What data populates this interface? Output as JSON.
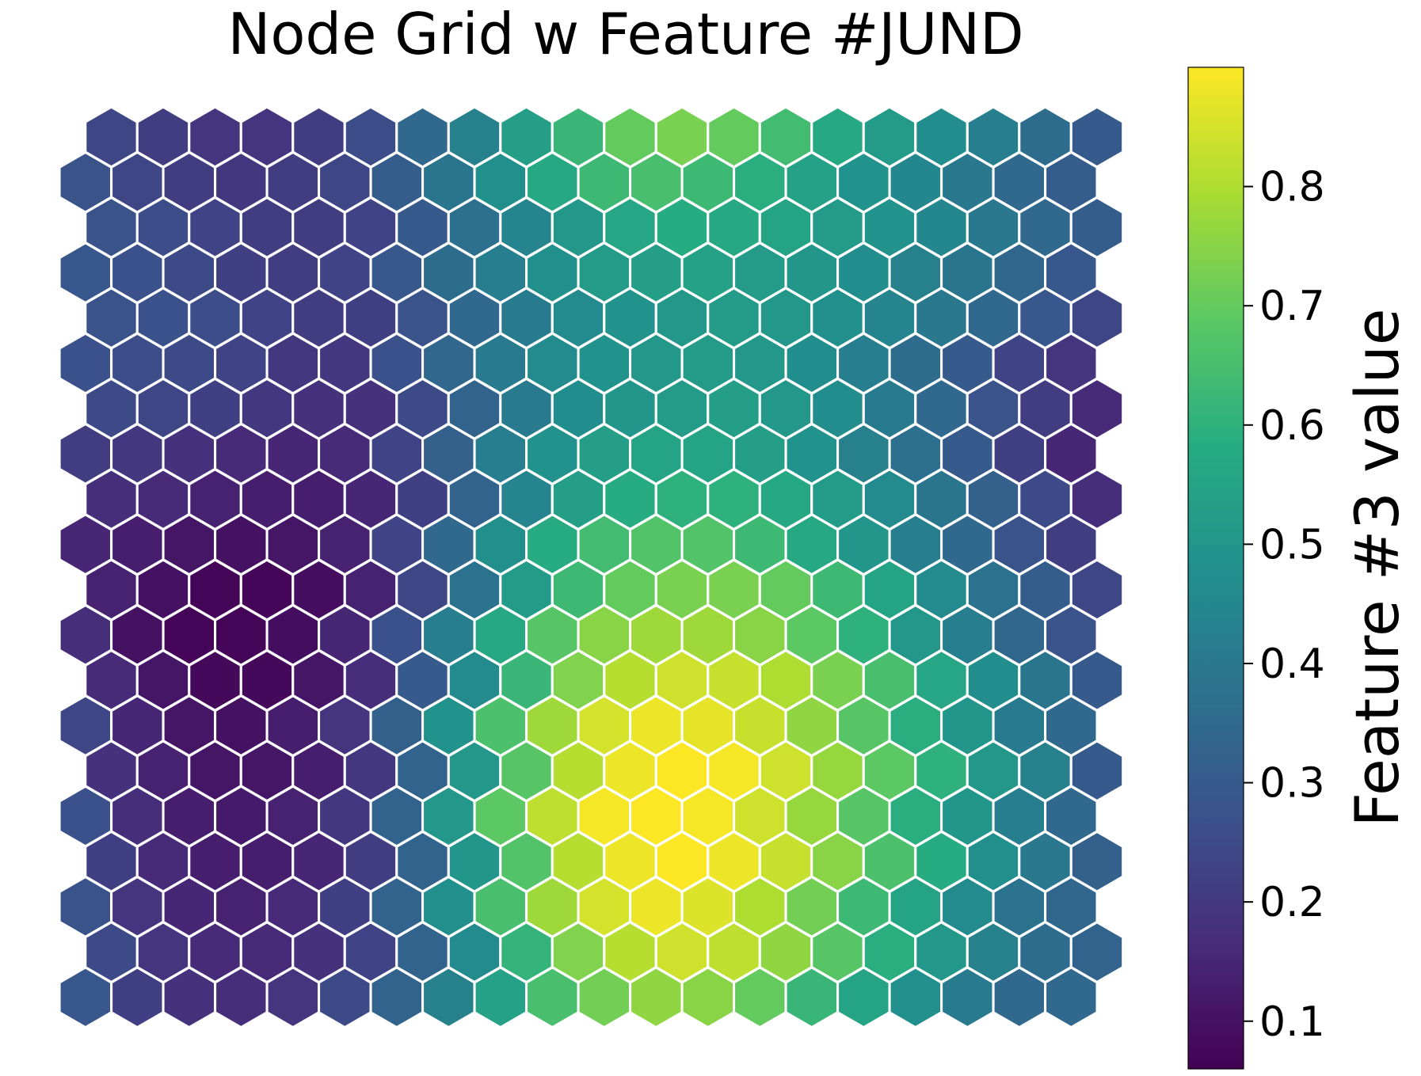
{
  "chart_data": {
    "type": "heatmap",
    "layout": "hexagonal",
    "title": "Node Grid w Feature #JUND",
    "colormap": "viridis",
    "cell_edge_color": "#ffffff",
    "rows": 20,
    "cols": 20,
    "row_order": "top-to-bottom",
    "values": [
      [
        0.24,
        0.21,
        0.19,
        0.19,
        0.21,
        0.26,
        0.35,
        0.43,
        0.53,
        0.62,
        0.7,
        0.73,
        0.7,
        0.64,
        0.57,
        0.52,
        0.47,
        0.42,
        0.36,
        0.3
      ],
      [
        0.28,
        0.24,
        0.21,
        0.2,
        0.21,
        0.24,
        0.31,
        0.39,
        0.48,
        0.57,
        0.63,
        0.65,
        0.63,
        0.59,
        0.54,
        0.49,
        0.45,
        0.4,
        0.35,
        0.31
      ],
      [
        0.28,
        0.26,
        0.23,
        0.21,
        0.21,
        0.23,
        0.3,
        0.37,
        0.44,
        0.51,
        0.56,
        0.58,
        0.57,
        0.55,
        0.52,
        0.49,
        0.45,
        0.4,
        0.35,
        0.31
      ],
      [
        0.29,
        0.27,
        0.25,
        0.22,
        0.21,
        0.23,
        0.29,
        0.36,
        0.42,
        0.48,
        0.52,
        0.53,
        0.54,
        0.52,
        0.5,
        0.47,
        0.43,
        0.39,
        0.34,
        0.29
      ],
      [
        0.28,
        0.27,
        0.26,
        0.23,
        0.21,
        0.22,
        0.28,
        0.35,
        0.41,
        0.46,
        0.49,
        0.51,
        0.52,
        0.51,
        0.48,
        0.44,
        0.4,
        0.35,
        0.29,
        0.24
      ],
      [
        0.27,
        0.26,
        0.25,
        0.23,
        0.2,
        0.2,
        0.27,
        0.34,
        0.41,
        0.46,
        0.49,
        0.51,
        0.52,
        0.51,
        0.47,
        0.42,
        0.36,
        0.3,
        0.23,
        0.19
      ],
      [
        0.25,
        0.24,
        0.22,
        0.2,
        0.18,
        0.18,
        0.25,
        0.33,
        0.41,
        0.47,
        0.5,
        0.52,
        0.53,
        0.51,
        0.47,
        0.41,
        0.35,
        0.28,
        0.21,
        0.16
      ],
      [
        0.21,
        0.2,
        0.18,
        0.16,
        0.15,
        0.16,
        0.23,
        0.32,
        0.42,
        0.49,
        0.53,
        0.55,
        0.55,
        0.53,
        0.49,
        0.43,
        0.37,
        0.3,
        0.22,
        0.15
      ],
      [
        0.17,
        0.16,
        0.14,
        0.13,
        0.13,
        0.15,
        0.22,
        0.33,
        0.44,
        0.53,
        0.58,
        0.6,
        0.6,
        0.57,
        0.52,
        0.46,
        0.39,
        0.32,
        0.25,
        0.17
      ],
      [
        0.15,
        0.13,
        0.11,
        0.1,
        0.11,
        0.14,
        0.23,
        0.35,
        0.48,
        0.58,
        0.64,
        0.67,
        0.67,
        0.63,
        0.57,
        0.5,
        0.42,
        0.35,
        0.28,
        0.21
      ],
      [
        0.14,
        0.1,
        0.07,
        0.07,
        0.09,
        0.14,
        0.24,
        0.38,
        0.52,
        0.63,
        0.7,
        0.73,
        0.73,
        0.7,
        0.63,
        0.55,
        0.46,
        0.38,
        0.31,
        0.24
      ],
      [
        0.17,
        0.1,
        0.07,
        0.07,
        0.09,
        0.15,
        0.27,
        0.42,
        0.57,
        0.68,
        0.75,
        0.78,
        0.78,
        0.75,
        0.69,
        0.6,
        0.51,
        0.42,
        0.34,
        0.28
      ],
      [
        0.16,
        0.11,
        0.08,
        0.08,
        0.11,
        0.17,
        0.3,
        0.46,
        0.62,
        0.74,
        0.81,
        0.84,
        0.83,
        0.8,
        0.73,
        0.65,
        0.56,
        0.47,
        0.39,
        0.3
      ],
      [
        0.24,
        0.15,
        0.11,
        0.1,
        0.13,
        0.19,
        0.32,
        0.49,
        0.66,
        0.78,
        0.85,
        0.88,
        0.87,
        0.83,
        0.76,
        0.68,
        0.59,
        0.5,
        0.41,
        0.35
      ],
      [
        0.18,
        0.14,
        0.11,
        0.11,
        0.13,
        0.2,
        0.33,
        0.51,
        0.68,
        0.81,
        0.88,
        0.91,
        0.89,
        0.84,
        0.77,
        0.69,
        0.6,
        0.51,
        0.43,
        0.3
      ],
      [
        0.27,
        0.17,
        0.13,
        0.12,
        0.14,
        0.2,
        0.33,
        0.51,
        0.69,
        0.82,
        0.89,
        0.92,
        0.89,
        0.84,
        0.77,
        0.68,
        0.59,
        0.5,
        0.42,
        0.35
      ],
      [
        0.22,
        0.16,
        0.13,
        0.13,
        0.15,
        0.21,
        0.33,
        0.5,
        0.67,
        0.81,
        0.88,
        0.91,
        0.88,
        0.83,
        0.75,
        0.66,
        0.58,
        0.48,
        0.4,
        0.32
      ],
      [
        0.28,
        0.19,
        0.15,
        0.14,
        0.16,
        0.22,
        0.33,
        0.48,
        0.65,
        0.78,
        0.85,
        0.88,
        0.86,
        0.8,
        0.72,
        0.63,
        0.55,
        0.46,
        0.38,
        0.34
      ],
      [
        0.25,
        0.19,
        0.16,
        0.16,
        0.18,
        0.23,
        0.33,
        0.46,
        0.61,
        0.74,
        0.81,
        0.84,
        0.82,
        0.76,
        0.68,
        0.59,
        0.51,
        0.43,
        0.36,
        0.33
      ],
      [
        0.29,
        0.22,
        0.18,
        0.17,
        0.19,
        0.25,
        0.33,
        0.43,
        0.54,
        0.65,
        0.72,
        0.76,
        0.75,
        0.7,
        0.62,
        0.55,
        0.48,
        0.41,
        0.35,
        0.35
      ]
    ],
    "colorbar": {
      "label": "Feature #3 value",
      "range": [
        0.06,
        0.9
      ],
      "ticks": [
        0.1,
        0.2,
        0.3,
        0.4,
        0.5,
        0.6,
        0.7,
        0.8
      ],
      "tick_labels": [
        "0.1",
        "0.2",
        "0.3",
        "0.4",
        "0.5",
        "0.6",
        "0.7",
        "0.8"
      ]
    },
    "grid": false,
    "legend": "none"
  }
}
